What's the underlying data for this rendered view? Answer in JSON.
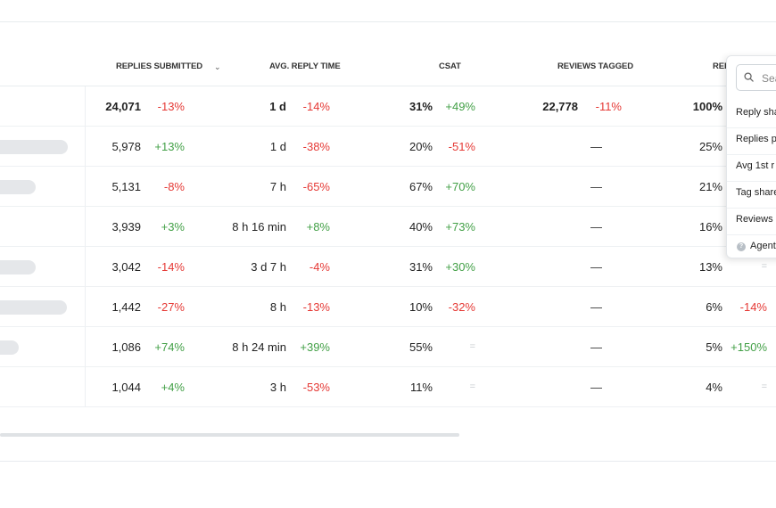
{
  "headers": {
    "replies_submitted": "REPLIES SUBMITTED",
    "avg_reply_time": "AVG. REPLY TIME",
    "csat": "CSAT",
    "reviews_tagged": "REVIEWS TAGGED",
    "truncated": "REI"
  },
  "rows": [
    {
      "name_bar": 0,
      "replies": "24,071",
      "replies_chg": "-13%",
      "reply_time": "1 d",
      "reply_time_chg": "-14%",
      "csat": "31%",
      "csat_chg": "+49%",
      "tagged": "22,778",
      "tagged_chg": "-11%",
      "share": "100%",
      "share_chg": ""
    },
    {
      "name_bar": 1,
      "replies": "5,978",
      "replies_chg": "+13%",
      "reply_time": "1 d",
      "reply_time_chg": "-38%",
      "csat": "20%",
      "csat_chg": "-51%",
      "tagged": "—",
      "share": "25%",
      "share_chg": ""
    },
    {
      "name_bar": 1,
      "replies": "5,131",
      "replies_chg": "-8%",
      "reply_time": "7 h",
      "reply_time_chg": "-65%",
      "csat": "67%",
      "csat_chg": "+70%",
      "tagged": "—",
      "share": "21%",
      "share_chg": ""
    },
    {
      "name_bar": 0,
      "replies": "3,939",
      "replies_chg": "+3%",
      "reply_time": "8 h 16 min",
      "reply_time_chg": "+8%",
      "csat": "40%",
      "csat_chg": "+73%",
      "tagged": "—",
      "share": "16%",
      "share_chg": ""
    },
    {
      "name_bar": 1,
      "replies": "3,042",
      "replies_chg": "-14%",
      "reply_time": "3 d 7 h",
      "reply_time_chg": "-4%",
      "csat": "31%",
      "csat_chg": "+30%",
      "tagged": "—",
      "share": "13%",
      "share_chg": "="
    },
    {
      "name_bar": 1,
      "replies": "1,442",
      "replies_chg": "-27%",
      "reply_time": "8 h",
      "reply_time_chg": "-13%",
      "csat": "10%",
      "csat_chg": "-32%",
      "tagged": "—",
      "share": "6%",
      "share_chg": "-14%"
    },
    {
      "name_bar": 1,
      "replies": "1,086",
      "replies_chg": "+74%",
      "reply_time": "8 h 24 min",
      "reply_time_chg": "+39%",
      "csat": "55%",
      "csat_chg": "=",
      "tagged": "—",
      "share": "5%",
      "share_chg": "+150%"
    },
    {
      "name_bar": 1,
      "replies": "1,044",
      "replies_chg": "+4%",
      "reply_time": "3 h",
      "reply_time_chg": "-53%",
      "csat": "11%",
      "csat_chg": "=",
      "tagged": "—",
      "share": "4%",
      "share_chg": "="
    }
  ],
  "popup": {
    "search_placeholder": "Sea",
    "items": [
      "Reply sha",
      "Replies p",
      "Avg 1st r",
      "Tag share",
      "Reviews r"
    ],
    "agent_label": "Agent",
    "search_icon": "search-icon",
    "info_icon": "info-icon"
  },
  "colors": {
    "positive": "#43a047",
    "negative": "#e53935",
    "neutral": "#c8cdd1"
  }
}
